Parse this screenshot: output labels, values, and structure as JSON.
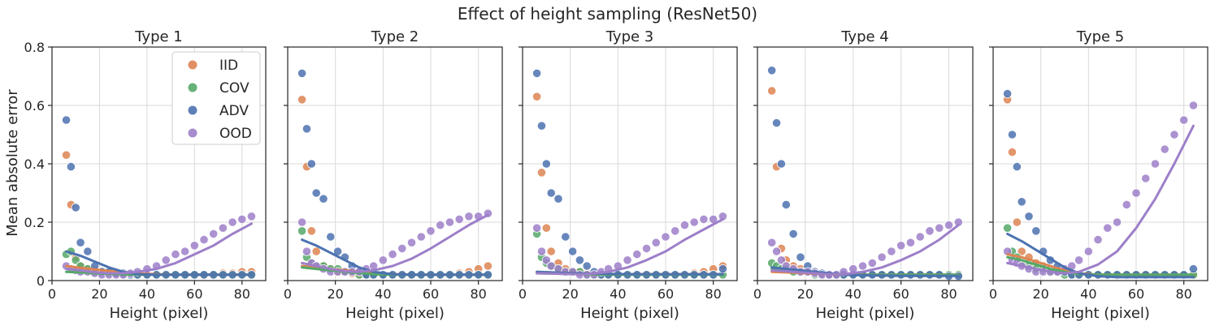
{
  "chart_data": {
    "type": "scatter",
    "title": "Effect of height sampling (ResNet50)",
    "xlabel": "Height (pixel)",
    "ylabel": "Mean absolute error",
    "xlim": [
      0,
      90
    ],
    "ylim": [
      0,
      0.8
    ],
    "xticks": [
      0,
      20,
      40,
      60,
      80
    ],
    "yticks": [
      0,
      0.2,
      0.4,
      0.6,
      0.8
    ],
    "xtick_labels": [
      "0",
      "20",
      "40",
      "60",
      "80"
    ],
    "ytick_labels": [
      "0",
      "0.2",
      "0.4",
      "0.6",
      "0.8"
    ],
    "grid": true,
    "legend_location": "top-right of first panel",
    "legend": [
      "IID",
      "COV",
      "ADV",
      "OOD"
    ],
    "colors": {
      "IID": "#dd8452",
      "COV": "#55a868",
      "ADV": "#4c72b0",
      "OOD": "#9d7fc9"
    },
    "x": [
      6,
      8,
      10,
      12,
      15,
      18,
      21,
      24,
      27,
      30,
      33,
      36,
      40,
      44,
      48,
      52,
      56,
      60,
      64,
      68,
      72,
      76,
      80,
      84
    ],
    "panels": [
      {
        "title": "Type 1",
        "series": [
          {
            "name": "IID",
            "points": [
              0.43,
              0.26,
              0.08,
              0.05,
              0.04,
              0.035,
              0.03,
              0.03,
              0.025,
              0.025,
              0.02,
              0.02,
              0.02,
              0.02,
              0.02,
              0.02,
              0.02,
              0.02,
              0.02,
              0.02,
              0.025,
              0.025,
              0.03,
              0.03
            ],
            "trend": [
              0.05,
              0.044,
              0.038,
              0.033,
              0.028,
              0.025,
              0.022,
              0.02,
              0.02,
              0.02,
              0.02,
              0.02
            ]
          },
          {
            "name": "COV",
            "points": [
              0.09,
              0.1,
              0.07,
              0.05,
              0.04,
              0.03,
              0.03,
              0.025,
              0.025,
              0.02,
              0.02,
              0.02,
              0.02,
              0.02,
              0.02,
              0.02,
              0.02,
              0.02,
              0.02,
              0.02,
              0.02,
              0.02,
              0.02,
              0.02
            ],
            "trend": [
              0.03,
              0.028,
              0.025,
              0.023,
              0.021,
              0.02,
              0.02,
              0.02,
              0.02,
              0.02,
              0.02,
              0.02
            ]
          },
          {
            "name": "ADV",
            "points": [
              0.55,
              0.39,
              0.25,
              0.13,
              0.1,
              0.05,
              0.03,
              0.03,
              0.025,
              0.025,
              0.02,
              0.02,
              0.02,
              0.02,
              0.02,
              0.02,
              0.02,
              0.02,
              0.02,
              0.02,
              0.02,
              0.02,
              0.02,
              0.02
            ],
            "trend": [
              0.1,
              0.085,
              0.065,
              0.045,
              0.03,
              0.022,
              0.02,
              0.02,
              0.02,
              0.02,
              0.02,
              0.02
            ]
          },
          {
            "name": "OOD",
            "points": [
              0.05,
              0.04,
              0.035,
              0.03,
              0.03,
              0.025,
              0.02,
              0.02,
              0.02,
              0.02,
              0.025,
              0.03,
              0.04,
              0.05,
              0.07,
              0.09,
              0.1,
              0.12,
              0.14,
              0.16,
              0.18,
              0.2,
              0.21,
              0.22
            ],
            "trend": [
              0.04,
              0.035,
              0.028,
              0.025,
              0.025,
              0.03,
              0.04,
              0.06,
              0.09,
              0.12,
              0.16,
              0.195
            ]
          }
        ]
      },
      {
        "title": "Type 2",
        "series": [
          {
            "name": "IID",
            "points": [
              0.62,
              0.39,
              0.17,
              0.1,
              0.05,
              0.04,
              0.03,
              0.03,
              0.025,
              0.02,
              0.02,
              0.02,
              0.02,
              0.02,
              0.02,
              0.02,
              0.02,
              0.02,
              0.02,
              0.02,
              0.025,
              0.03,
              0.04,
              0.05
            ],
            "trend": [
              0.05,
              0.045,
              0.04,
              0.035,
              0.03,
              0.026,
              0.022,
              0.02,
              0.02,
              0.02,
              0.02,
              0.02
            ]
          },
          {
            "name": "COV",
            "points": [
              0.17,
              0.08,
              0.06,
              0.05,
              0.05,
              0.04,
              0.04,
              0.03,
              0.03,
              0.02,
              0.02,
              0.02,
              0.02,
              0.02,
              0.02,
              0.02,
              0.02,
              0.02,
              0.02,
              0.02,
              0.02,
              0.02,
              0.02,
              0.02
            ],
            "trend": [
              0.045,
              0.04,
              0.035,
              0.03,
              0.026,
              0.022,
              0.02,
              0.02,
              0.02,
              0.02,
              0.02,
              0.02
            ]
          },
          {
            "name": "ADV",
            "points": [
              0.71,
              0.52,
              0.4,
              0.3,
              0.28,
              0.15,
              0.1,
              0.08,
              0.05,
              0.03,
              0.02,
              0.02,
              0.02,
              0.02,
              0.02,
              0.02,
              0.02,
              0.02,
              0.02,
              0.02,
              0.02,
              0.02,
              0.02,
              0.02
            ],
            "trend": [
              0.14,
              0.12,
              0.095,
              0.07,
              0.045,
              0.03,
              0.022,
              0.02,
              0.02,
              0.02,
              0.02,
              0.02
            ]
          },
          {
            "name": "OOD",
            "points": [
              0.2,
              0.1,
              0.06,
              0.05,
              0.04,
              0.03,
              0.03,
              0.03,
              0.03,
              0.03,
              0.04,
              0.05,
              0.07,
              0.09,
              0.11,
              0.13,
              0.15,
              0.17,
              0.19,
              0.2,
              0.21,
              0.22,
              0.22,
              0.23
            ],
            "trend": [
              0.06,
              0.05,
              0.04,
              0.032,
              0.03,
              0.035,
              0.05,
              0.075,
              0.11,
              0.15,
              0.19,
              0.225
            ]
          }
        ]
      },
      {
        "title": "Type 3",
        "series": [
          {
            "name": "IID",
            "points": [
              0.63,
              0.37,
              0.18,
              0.1,
              0.06,
              0.04,
              0.03,
              0.03,
              0.025,
              0.02,
              0.02,
              0.02,
              0.02,
              0.02,
              0.02,
              0.02,
              0.02,
              0.02,
              0.02,
              0.02,
              0.025,
              0.03,
              0.04,
              0.05
            ],
            "trend": [
              0.03,
              0.028,
              0.026,
              0.025,
              0.024,
              0.023,
              0.022,
              0.022,
              0.022,
              0.022,
              0.022,
              0.022
            ]
          },
          {
            "name": "COV",
            "points": [
              0.16,
              0.08,
              0.06,
              0.05,
              0.04,
              0.03,
              0.03,
              0.03,
              0.02,
              0.02,
              0.02,
              0.02,
              0.02,
              0.02,
              0.02,
              0.02,
              0.02,
              0.02,
              0.02,
              0.02,
              0.02,
              0.02,
              0.02,
              0.02
            ],
            "trend": [
              0.025,
              0.024,
              0.023,
              0.022,
              0.021,
              0.02,
              0.02,
              0.02,
              0.02,
              0.02,
              0.02,
              0.02
            ]
          },
          {
            "name": "ADV",
            "points": [
              0.71,
              0.53,
              0.4,
              0.3,
              0.28,
              0.15,
              0.1,
              0.07,
              0.05,
              0.03,
              0.02,
              0.02,
              0.02,
              0.02,
              0.02,
              0.02,
              0.02,
              0.02,
              0.02,
              0.02,
              0.02,
              0.02,
              0.02,
              0.04
            ],
            "trend": [
              0.03,
              0.028,
              0.026,
              0.025,
              0.024,
              0.023,
              0.022,
              0.022,
              0.022,
              0.022,
              0.022,
              0.022
            ]
          },
          {
            "name": "OOD",
            "points": [
              0.18,
              0.1,
              0.07,
              0.05,
              0.04,
              0.03,
              0.03,
              0.02,
              0.02,
              0.02,
              0.03,
              0.04,
              0.05,
              0.07,
              0.09,
              0.11,
              0.13,
              0.15,
              0.17,
              0.19,
              0.2,
              0.21,
              0.21,
              0.22
            ],
            "trend": [
              0.025,
              0.024,
              0.023,
              0.022,
              0.024,
              0.03,
              0.045,
              0.07,
              0.1,
              0.14,
              0.175,
              0.21
            ]
          }
        ]
      },
      {
        "title": "Type 4",
        "series": [
          {
            "name": "IID",
            "points": [
              0.65,
              0.39,
              0.11,
              0.07,
              0.05,
              0.04,
              0.03,
              0.03,
              0.02,
              0.02,
              0.02,
              0.02,
              0.02,
              0.02,
              0.02,
              0.02,
              0.02,
              0.02,
              0.02,
              0.02,
              0.02,
              0.02,
              0.02,
              0.02
            ],
            "trend": [
              0.03,
              0.028,
              0.026,
              0.024,
              0.022,
              0.02,
              0.02,
              0.02,
              0.02,
              0.02,
              0.02,
              0.02
            ]
          },
          {
            "name": "COV",
            "points": [
              0.06,
              0.05,
              0.04,
              0.04,
              0.03,
              0.03,
              0.03,
              0.02,
              0.02,
              0.02,
              0.02,
              0.02,
              0.02,
              0.02,
              0.02,
              0.02,
              0.02,
              0.02,
              0.02,
              0.02,
              0.02,
              0.02,
              0.02,
              0.02
            ],
            "trend": [
              0.04,
              0.035,
              0.03,
              0.026,
              0.023,
              0.021,
              0.02,
              0.02,
              0.02,
              0.02,
              0.02,
              0.02
            ]
          },
          {
            "name": "ADV",
            "points": [
              0.72,
              0.54,
              0.4,
              0.26,
              0.16,
              0.08,
              0.05,
              0.03,
              0.025,
              0.02,
              0.02,
              0.02,
              0.02,
              0.02,
              0.02,
              0.02,
              0.02,
              0.02,
              0.02,
              0.02,
              0.02,
              0.02,
              0.015,
              0.015
            ],
            "trend": [
              0.045,
              0.04,
              0.035,
              0.03,
              0.025,
              0.02,
              0.018,
              0.017,
              0.016,
              0.016,
              0.016,
              0.016
            ]
          },
          {
            "name": "OOD",
            "points": [
              0.13,
              0.1,
              0.07,
              0.05,
              0.04,
              0.03,
              0.03,
              0.025,
              0.02,
              0.02,
              0.02,
              0.03,
              0.04,
              0.05,
              0.06,
              0.08,
              0.1,
              0.12,
              0.13,
              0.15,
              0.17,
              0.18,
              0.19,
              0.2
            ],
            "trend": [
              0.035,
              0.032,
              0.028,
              0.025,
              0.022,
              0.022,
              0.03,
              0.045,
              0.07,
              0.1,
              0.14,
              0.19
            ]
          }
        ]
      },
      {
        "title": "Type 5",
        "series": [
          {
            "name": "IID",
            "points": [
              0.62,
              0.44,
              0.2,
              0.1,
              0.08,
              0.06,
              0.05,
              0.04,
              0.03,
              0.03,
              0.02,
              0.02,
              0.02,
              0.02,
              0.02,
              0.02,
              0.02,
              0.02,
              0.02,
              0.02,
              0.02,
              0.02,
              0.02,
              0.02
            ],
            "trend": [
              0.09,
              0.08,
              0.065,
              0.05,
              0.035,
              0.025,
              0.02,
              0.02,
              0.02,
              0.02,
              0.02,
              0.02
            ]
          },
          {
            "name": "COV",
            "points": [
              0.18,
              0.1,
              0.08,
              0.06,
              0.05,
              0.04,
              0.04,
              0.03,
              0.03,
              0.02,
              0.02,
              0.02,
              0.02,
              0.02,
              0.02,
              0.02,
              0.02,
              0.02,
              0.02,
              0.02,
              0.02,
              0.02,
              0.02,
              0.02
            ],
            "trend": [
              0.08,
              0.07,
              0.055,
              0.04,
              0.03,
              0.022,
              0.02,
              0.02,
              0.02,
              0.02,
              0.02,
              0.02
            ]
          },
          {
            "name": "ADV",
            "points": [
              0.64,
              0.5,
              0.39,
              0.27,
              0.22,
              0.17,
              0.1,
              0.07,
              0.05,
              0.03,
              0.02,
              0.02,
              0.02,
              0.02,
              0.02,
              0.02,
              0.02,
              0.02,
              0.02,
              0.02,
              0.02,
              0.02,
              0.02,
              0.04
            ],
            "trend": [
              0.16,
              0.135,
              0.105,
              0.075,
              0.045,
              0.025,
              0.015,
              0.012,
              0.012,
              0.012,
              0.012,
              0.012
            ]
          },
          {
            "name": "OOD",
            "points": [
              0.1,
              0.07,
              0.06,
              0.05,
              0.04,
              0.03,
              0.03,
              0.03,
              0.03,
              0.04,
              0.05,
              0.07,
              0.1,
              0.14,
              0.18,
              0.2,
              0.26,
              0.3,
              0.35,
              0.4,
              0.45,
              0.5,
              0.55,
              0.6
            ],
            "trend": [
              0.06,
              0.05,
              0.04,
              0.03,
              0.025,
              0.03,
              0.055,
              0.1,
              0.18,
              0.28,
              0.4,
              0.53
            ]
          }
        ]
      }
    ]
  }
}
